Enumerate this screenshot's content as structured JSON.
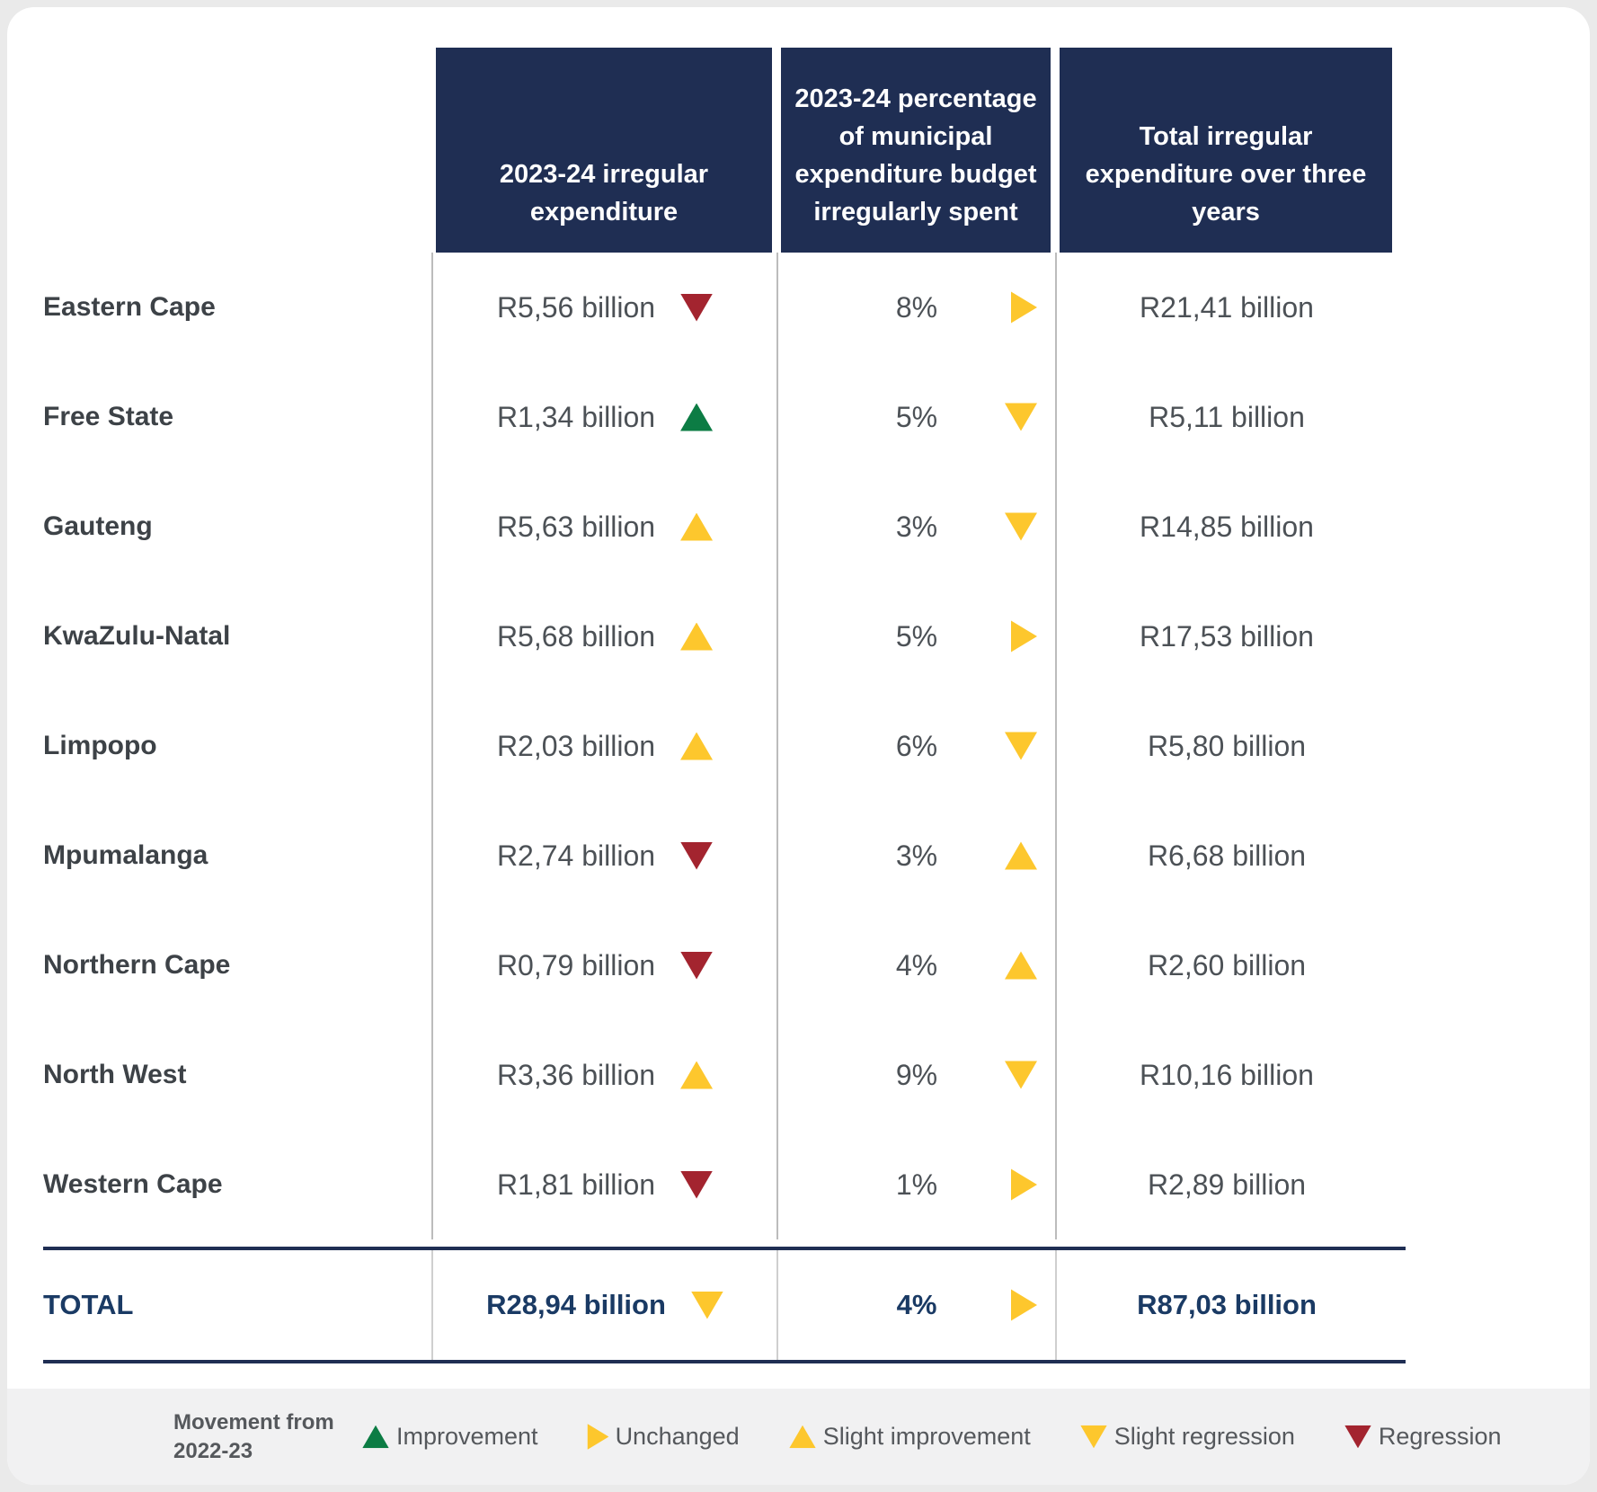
{
  "header": {
    "columns": [
      "2023-24 irregular expenditure",
      "2023-24 percentage of municipal expenditure budget irregularly spent",
      "Total irregular expenditure over three years"
    ]
  },
  "rows": [
    {
      "province": "Eastern Cape",
      "expenditure": "R5,56 billion",
      "exp_trend": "regression",
      "percent": "8%",
      "pct_trend": "unchanged",
      "total": "R21,41 billion"
    },
    {
      "province": "Free State",
      "expenditure": "R1,34 billion",
      "exp_trend": "improvement",
      "percent": "5%",
      "pct_trend": "slight-regression",
      "total": "R5,11 billion"
    },
    {
      "province": "Gauteng",
      "expenditure": "R5,63 billion",
      "exp_trend": "slight-improvement",
      "percent": "3%",
      "pct_trend": "slight-regression",
      "total": "R14,85 billion"
    },
    {
      "province": "KwaZulu-Natal",
      "expenditure": "R5,68 billion",
      "exp_trend": "slight-improvement",
      "percent": "5%",
      "pct_trend": "unchanged",
      "total": "R17,53 billion"
    },
    {
      "province": "Limpopo",
      "expenditure": "R2,03 billion",
      "exp_trend": "slight-improvement",
      "percent": "6%",
      "pct_trend": "slight-regression",
      "total": "R5,80 billion"
    },
    {
      "province": "Mpumalanga",
      "expenditure": "R2,74 billion",
      "exp_trend": "regression",
      "percent": "3%",
      "pct_trend": "slight-improvement",
      "total": "R6,68 billion"
    },
    {
      "province": "Northern Cape",
      "expenditure": "R0,79 billion",
      "exp_trend": "regression",
      "percent": "4%",
      "pct_trend": "slight-improvement",
      "total": "R2,60 billion"
    },
    {
      "province": "North West",
      "expenditure": "R3,36 billion",
      "exp_trend": "slight-improvement",
      "percent": "9%",
      "pct_trend": "slight-regression",
      "total": "R10,16 billion"
    },
    {
      "province": "Western Cape",
      "expenditure": "R1,81 billion",
      "exp_trend": "regression",
      "percent": "1%",
      "pct_trend": "unchanged",
      "total": "R2,89 billion"
    }
  ],
  "total_row": {
    "label": "TOTAL",
    "expenditure": "R28,94 billion",
    "exp_trend": "slight-regression",
    "percent": "4%",
    "pct_trend": "unchanged",
    "total": "R87,03 billion"
  },
  "legend": {
    "title": "Movement from 2022-23",
    "items": [
      {
        "label": "Improvement",
        "trend": "improvement"
      },
      {
        "label": "Unchanged",
        "trend": "unchanged"
      },
      {
        "label": "Slight improvement",
        "trend": "slight-improvement"
      },
      {
        "label": "Slight regression",
        "trend": "slight-regression"
      },
      {
        "label": "Regression",
        "trend": "regression"
      }
    ]
  },
  "colors": {
    "navy": "#1f2e53",
    "navy_text": "#1a3a64",
    "yellow": "#fdc72d",
    "green": "#0c7c44",
    "red": "#a3242f",
    "value_text": "#4c5156",
    "label_text": "#3d4247",
    "divider": "#bcbcbc",
    "page_bg": "#eaeaea",
    "legend_bg": "#f1f1f2"
  },
  "chart_data": {
    "type": "table",
    "title": "Municipal irregular expenditure by province",
    "categories": [
      "Eastern Cape",
      "Free State",
      "Gauteng",
      "KwaZulu-Natal",
      "Limpopo",
      "Mpumalanga",
      "Northern Cape",
      "North West",
      "Western Cape"
    ],
    "series": [
      {
        "name": "2023-24 irregular expenditure (R billion)",
        "values": [
          5.56,
          1.34,
          5.63,
          5.68,
          2.03,
          2.74,
          0.79,
          3.36,
          1.81
        ],
        "movement_from_2022_23": [
          "regression",
          "improvement",
          "slight improvement",
          "slight improvement",
          "slight improvement",
          "regression",
          "regression",
          "slight improvement",
          "regression"
        ]
      },
      {
        "name": "2023-24 percentage of municipal expenditure budget irregularly spent (%)",
        "values": [
          8,
          5,
          3,
          5,
          6,
          3,
          4,
          9,
          1
        ],
        "movement_from_2022_23": [
          "unchanged",
          "slight regression",
          "slight regression",
          "unchanged",
          "slight regression",
          "slight improvement",
          "slight improvement",
          "slight regression",
          "unchanged"
        ]
      },
      {
        "name": "Total irregular expenditure over three years (R billion)",
        "values": [
          21.41,
          5.11,
          14.85,
          17.53,
          5.8,
          6.68,
          2.6,
          10.16,
          2.89
        ]
      }
    ],
    "totals": {
      "expenditure_2023_24_billion": 28.94,
      "expenditure_movement": "slight regression",
      "percent_of_budget": 4,
      "percent_movement": "unchanged",
      "three_year_total_billion": 87.03
    },
    "legend_position": "bottom"
  }
}
